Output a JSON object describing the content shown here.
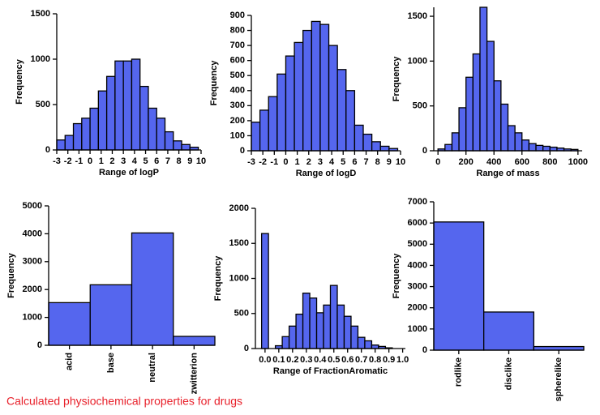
{
  "chart_data": [
    {
      "type": "histogram",
      "x_label": "Range of logP",
      "y_label": "Frequency",
      "color": "#5566ee",
      "bins": [
        -3,
        -2.25,
        -1.5,
        -0.75,
        0,
        0.75,
        1.5,
        2.25,
        3,
        3.75,
        4.5,
        5.25,
        6,
        6.75,
        7.5,
        8.25,
        9,
        9.75
      ],
      "values": [
        110,
        160,
        290,
        350,
        460,
        650,
        810,
        980,
        980,
        1000,
        700,
        460,
        350,
        200,
        100,
        60,
        30
      ],
      "xlim": [
        -3,
        10
      ],
      "xticks": [
        -3,
        -2,
        -1,
        0,
        1,
        2,
        3,
        4,
        5,
        6,
        7,
        8,
        9,
        10
      ],
      "ylim": [
        0,
        1500
      ],
      "yticks": [
        0,
        500,
        1000,
        1500
      ]
    },
    {
      "type": "histogram",
      "x_label": "Range of logD",
      "y_label": "Frequency",
      "color": "#5566ee",
      "bins": [
        -3,
        -2.25,
        -1.5,
        -0.75,
        0,
        0.75,
        1.5,
        2.25,
        3,
        3.75,
        4.5,
        5.25,
        6,
        6.75,
        7.5,
        8.25,
        9,
        9.75
      ],
      "values": [
        190,
        270,
        360,
        510,
        630,
        720,
        800,
        860,
        840,
        700,
        540,
        400,
        170,
        110,
        60,
        30,
        15
      ],
      "xlim": [
        -3,
        10
      ],
      "xticks": [
        -3,
        -2,
        -1,
        0,
        1,
        2,
        3,
        4,
        5,
        6,
        7,
        8,
        9,
        10
      ],
      "ylim": [
        0,
        900
      ],
      "yticks": [
        0,
        100,
        200,
        300,
        400,
        500,
        600,
        700,
        800,
        900
      ]
    },
    {
      "type": "histogram",
      "x_label": "Range of mass",
      "y_label": "Frequency",
      "color": "#5566ee",
      "bins": [
        0,
        50,
        100,
        150,
        200,
        250,
        300,
        350,
        400,
        450,
        500,
        550,
        600,
        650,
        700,
        750,
        800,
        850,
        900,
        950,
        1000
      ],
      "values": [
        20,
        70,
        200,
        480,
        820,
        1080,
        1600,
        1220,
        780,
        520,
        280,
        200,
        120,
        80,
        60,
        50,
        40,
        30,
        20,
        15
      ],
      "xlim": [
        -30,
        1030
      ],
      "xticks": [
        0,
        200,
        400,
        600,
        800,
        1000
      ],
      "ylim": [
        0,
        1600
      ],
      "yticks": [
        0,
        500,
        1000,
        1500
      ]
    },
    {
      "type": "bar",
      "y_label": "Frequency",
      "color": "#5566ee",
      "categories": [
        "acid",
        "base",
        "neutral",
        "zwitterion"
      ],
      "values": [
        1530,
        2170,
        4030,
        320
      ],
      "ylim": [
        0,
        5000
      ],
      "yticks": [
        0,
        1000,
        2000,
        3000,
        4000,
        5000
      ]
    },
    {
      "type": "histogram",
      "x_label": "Range of FractionAromatic",
      "y_label": "Frequency",
      "color": "#5566ee",
      "bins": [
        -0.025,
        0.025,
        0.075,
        0.125,
        0.175,
        0.225,
        0.275,
        0.325,
        0.375,
        0.425,
        0.475,
        0.525,
        0.575,
        0.625,
        0.675,
        0.725,
        0.775,
        0.825,
        0.875,
        0.925
      ],
      "values": [
        1640,
        0,
        40,
        170,
        320,
        490,
        790,
        720,
        510,
        620,
        900,
        620,
        460,
        320,
        160,
        110,
        50,
        30,
        10
      ],
      "xlim": [
        -0.07,
        1.02
      ],
      "xticks": [
        {
          "value": 0,
          "label": "0.0"
        },
        0.1,
        0.2,
        0.3,
        0.4,
        0.5,
        0.6,
        0.7,
        0.8,
        0.9,
        {
          "value": 1,
          "label": "1.0"
        }
      ],
      "ylim": [
        0,
        2000
      ],
      "yticks": [
        0,
        500,
        1000,
        1500,
        2000
      ]
    },
    {
      "type": "bar",
      "y_label": "Frequency",
      "color": "#5566ee",
      "categories": [
        "rodlike",
        "disclike",
        "spherelike"
      ],
      "values": [
        6050,
        1800,
        170
      ],
      "ylim": [
        0,
        7000
      ],
      "yticks": [
        0,
        1000,
        2000,
        3000,
        4000,
        5000,
        6000,
        7000
      ]
    }
  ],
  "caption": "Calculated physiochemical properties for drugs"
}
